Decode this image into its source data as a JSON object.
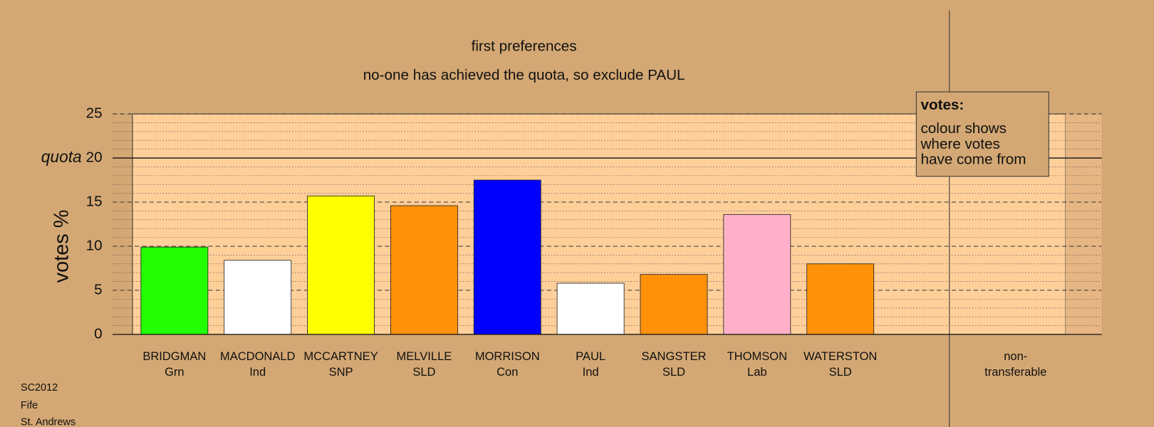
{
  "chart_data": {
    "type": "bar",
    "title": "first preferences",
    "subtitle": "no-one has achieved the quota, so exclude PAUL",
    "y_label": "votes %",
    "categories": [
      "BRIDGMAN",
      "MACDONALD",
      "MCCARTNEY",
      "MELVILLE",
      "MORRISON",
      "PAUL",
      "SANGSTER",
      "THOMSON",
      "WATERSTON"
    ],
    "parties": [
      "Grn",
      "Ind",
      "SNP",
      "SLD",
      "Con",
      "Ind",
      "SLD",
      "Lab",
      "SLD"
    ],
    "values": [
      9.9,
      8.4,
      15.7,
      14.6,
      17.5,
      5.8,
      6.8,
      13.6,
      8.0
    ],
    "colors": [
      "#22ff00",
      "#ffffff",
      "#ffff00",
      "#ff9108",
      "#0000ff",
      "#ffffff",
      "#ff9108",
      "#ffb0c8",
      "#ff9108"
    ],
    "extra_column": [
      "non-",
      "transferable"
    ],
    "quota": {
      "label": "quota",
      "value": 20
    },
    "ylim": [
      0,
      25
    ],
    "yticks": [
      0,
      5,
      10,
      15,
      20,
      25
    ],
    "minor_yticks": [
      1,
      2,
      3,
      4,
      6,
      7,
      8,
      9,
      11,
      12,
      13,
      14,
      16,
      17,
      18,
      19,
      21,
      22,
      23,
      24
    ],
    "grid": true,
    "legend": {
      "title": "votes:",
      "lines": [
        "colour shows",
        "where votes",
        "have come from"
      ]
    },
    "footer": [
      "SC2012",
      "Fife",
      "St. Andrews"
    ]
  }
}
